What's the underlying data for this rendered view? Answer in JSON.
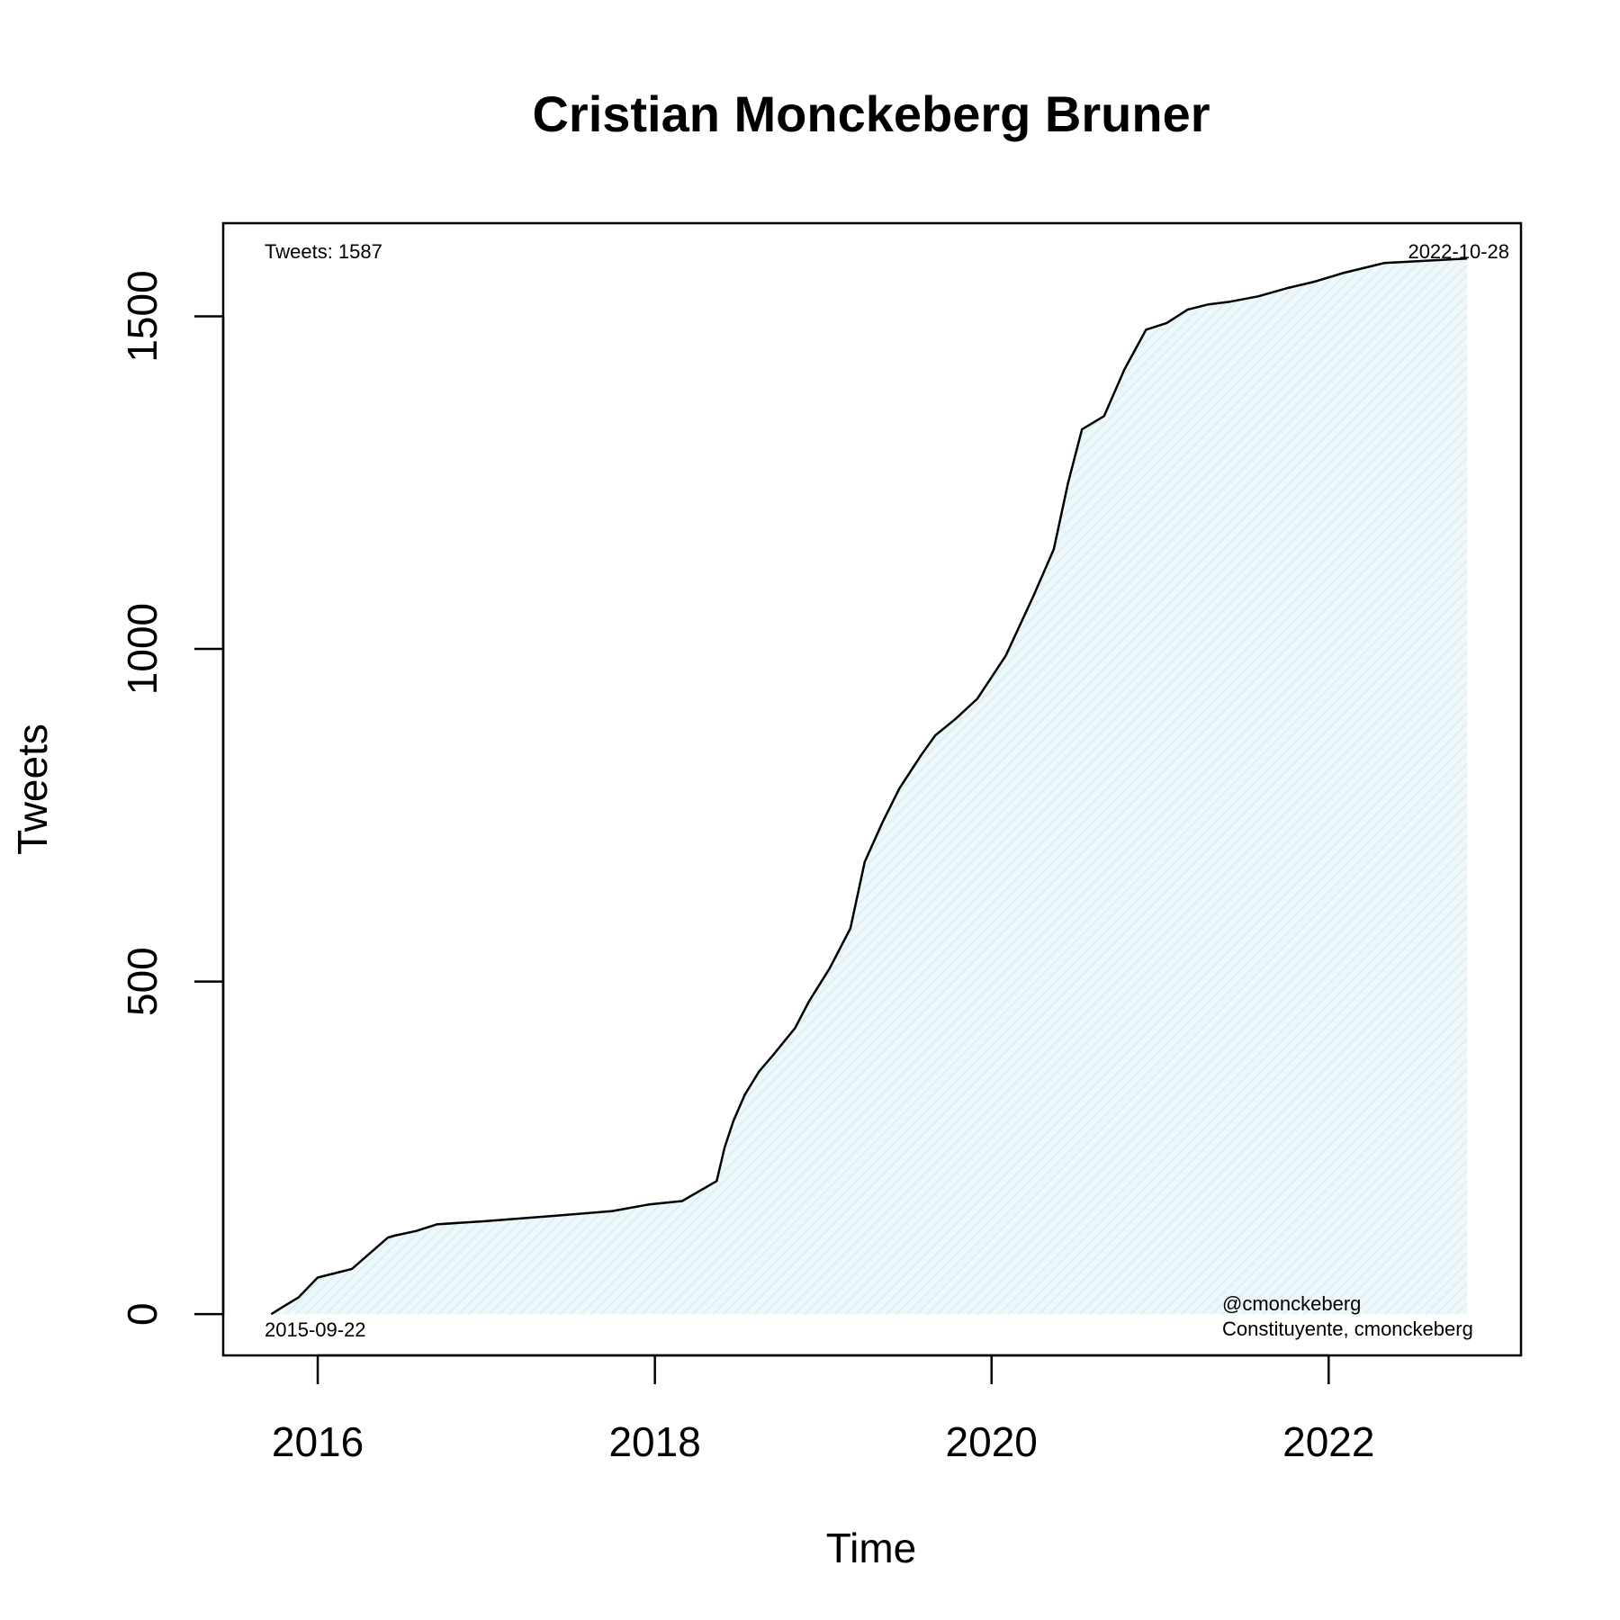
{
  "chart_data": {
    "type": "area",
    "title": "Cristian Monckeberg Bruner",
    "xlabel": "Time",
    "ylabel": "Tweets",
    "xlim": [
      "2015-06-10",
      "2023-02-22"
    ],
    "ylim": [
      -62,
      1640
    ],
    "x_ticks": [
      "2016",
      "2018",
      "2020",
      "2022"
    ],
    "y_ticks": [
      "0",
      "500",
      "1000",
      "1500"
    ],
    "grid": false,
    "legend": "none",
    "line_color": "#000000",
    "fill_color": "#e6f5f8",
    "annotations": {
      "count_label": "Tweets: 1587",
      "start_date": "2015-09-22",
      "end_date": "2022-10-28",
      "handle": "@cmonckeberg",
      "description": "Constituyente, cmonckeberg"
    },
    "series": [
      {
        "x": [
          "2015-09-22",
          "2015-10-15",
          "2015-11-20",
          "2016-01-01",
          "2016-03-15",
          "2016-06-01",
          "2016-06-15",
          "2016-08-01",
          "2016-09-15",
          "2017-01-01",
          "2017-06-01",
          "2017-10-01",
          "2017-12-20",
          "2018-03-01",
          "2018-05-15",
          "2018-06-01",
          "2018-06-20",
          "2018-07-15",
          "2018-08-15",
          "2018-09-15",
          "2018-11-01",
          "2018-12-01",
          "2019-01-15",
          "2019-03-01",
          "2019-04-01",
          "2019-05-10",
          "2019-06-15",
          "2019-08-01",
          "2019-09-01",
          "2019-10-15",
          "2019-12-01",
          "2020-02-01",
          "2020-04-01",
          "2020-05-15",
          "2020-06-15",
          "2020-07-15",
          "2020-09-01",
          "2020-10-15",
          "2020-12-01",
          "2021-01-15",
          "2021-03-01",
          "2021-04-15",
          "2021-06-01",
          "2021-08-01",
          "2021-10-01",
          "2021-12-01",
          "2022-02-01",
          "2022-05-01",
          "2022-10-28"
        ],
        "y": [
          0,
          10,
          25,
          55,
          68,
          115,
          118,
          125,
          135,
          140,
          148,
          155,
          165,
          170,
          200,
          250,
          290,
          330,
          365,
          390,
          430,
          470,
          520,
          580,
          680,
          740,
          790,
          840,
          870,
          895,
          925,
          990,
          1080,
          1150,
          1250,
          1330,
          1350,
          1420,
          1480,
          1490,
          1510,
          1518,
          1522,
          1530,
          1542,
          1552,
          1565,
          1580,
          1587
        ]
      }
    ]
  }
}
